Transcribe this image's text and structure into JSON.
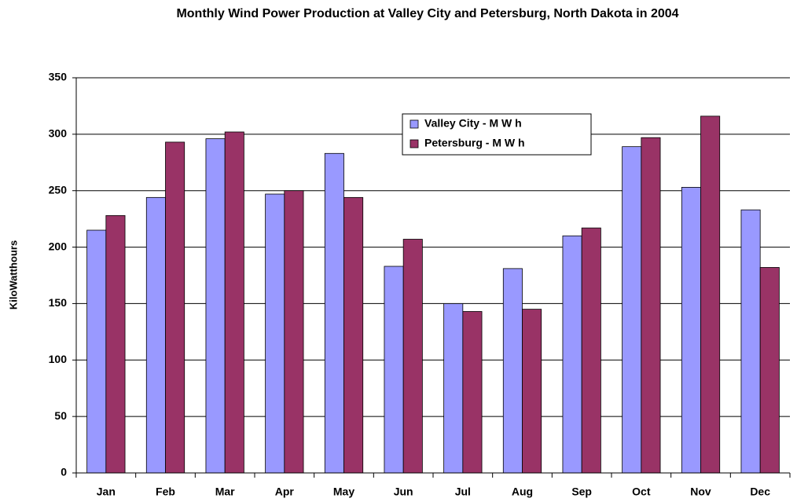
{
  "chart_data": {
    "type": "bar",
    "title": "Monthly Wind Power Production at Valley City and Petersburg, North Dakota in 2004",
    "y_label": "KiloWatthours",
    "categories": [
      "Jan",
      "Feb",
      "Mar",
      "Apr",
      "May",
      "Jun",
      "Jul",
      "Aug",
      "Sep",
      "Oct",
      "Nov",
      "Dec"
    ],
    "series": [
      {
        "name": "Valley City - M W h",
        "color": "#9999ff",
        "values": [
          215,
          244,
          296,
          247,
          283,
          183,
          150,
          181,
          210,
          289,
          253,
          233
        ]
      },
      {
        "name": "Petersburg - M W h",
        "color": "#993366",
        "values": [
          228,
          293,
          302,
          250,
          244,
          207,
          143,
          145,
          217,
          297,
          316,
          182
        ]
      }
    ],
    "ylim": [
      0,
      350
    ],
    "yticks": [
      0,
      50,
      100,
      150,
      200,
      250,
      300,
      350
    ],
    "grid": true
  }
}
